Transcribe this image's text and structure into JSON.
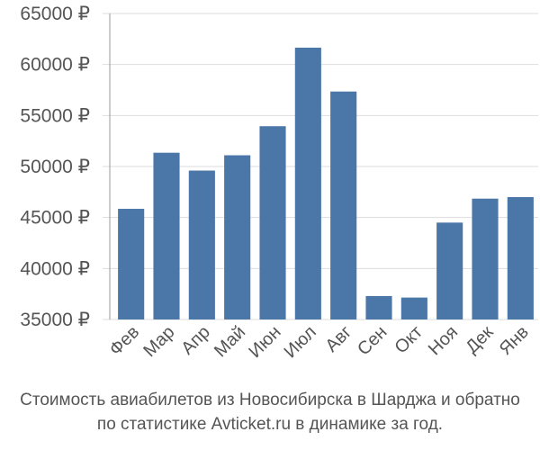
{
  "chart_data": {
    "type": "bar",
    "categories": [
      "Фев",
      "Мар",
      "Апр",
      "Май",
      "Июн",
      "Июл",
      "Авг",
      "Сен",
      "Окт",
      "Ноя",
      "Дек",
      "Янв"
    ],
    "values": [
      45850,
      51350,
      49600,
      51100,
      53950,
      61650,
      57350,
      37300,
      37150,
      44500,
      46850,
      47000
    ],
    "yticks": [
      "65000 ₽",
      "60000 ₽",
      "55000 ₽",
      "50000 ₽",
      "45000 ₽",
      "40000 ₽",
      "35000 ₽"
    ],
    "ytick_values": [
      65000,
      60000,
      55000,
      50000,
      45000,
      40000,
      35000
    ],
    "ylim": [
      35000,
      65000
    ],
    "bar_color": "#4a76a8",
    "grid": true,
    "title": "",
    "xlabel": "",
    "ylabel": ""
  },
  "caption": {
    "line1": "Стоимость авиабилетов из Новосибирска в Шарджа и обратно",
    "line2": "по статистике Avticket.ru в динамике за год."
  }
}
